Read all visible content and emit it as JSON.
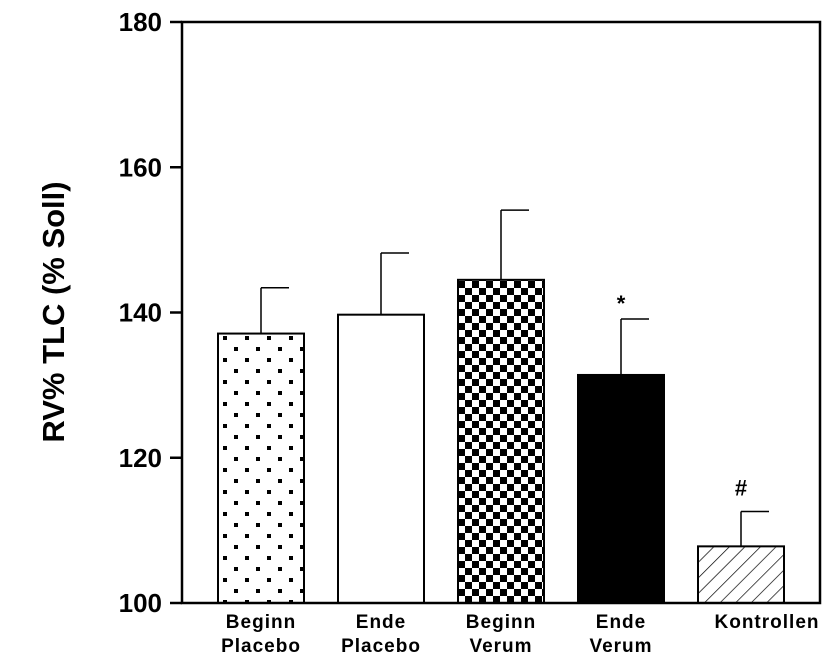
{
  "chart_data": {
    "type": "bar",
    "title": "",
    "xlabel": "",
    "ylabel": "RV% TLC (% Soll)",
    "ylim": [
      100,
      180
    ],
    "yticks": [
      100,
      120,
      140,
      160,
      180
    ],
    "grid": false,
    "categories": [
      [
        "Beginn",
        "Placebo"
      ],
      [
        "Ende",
        "Placebo"
      ],
      [
        "Beginn",
        "Verum"
      ],
      [
        "Ende",
        "Verum"
      ],
      [
        "Kontrollen"
      ]
    ],
    "values": [
      137.1,
      139.7,
      144.5,
      131.4,
      107.8
    ],
    "error_upper": [
      143.4,
      148.2,
      154.1,
      139.1,
      112.6
    ],
    "annotations": [
      "",
      "",
      "",
      "*",
      "#"
    ],
    "fills": [
      "dots",
      "white",
      "checker",
      "black",
      "hatch"
    ]
  }
}
